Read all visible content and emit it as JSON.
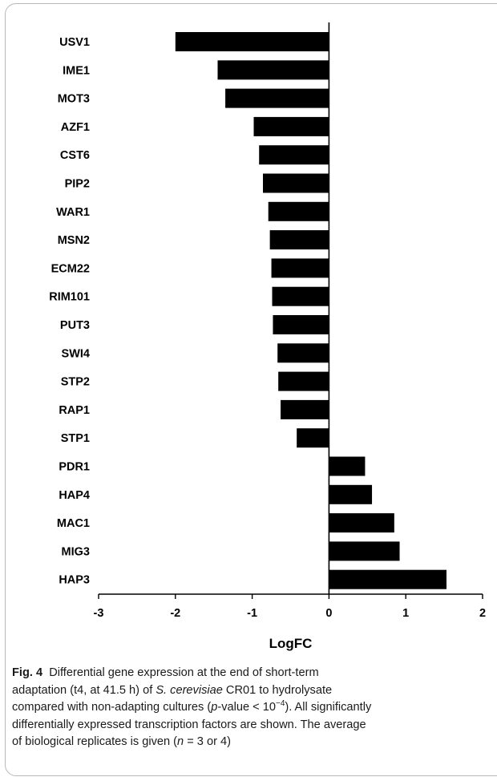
{
  "chart_data": {
    "type": "bar",
    "orientation": "horizontal",
    "categories": [
      "USV1",
      "IME1",
      "MOT3",
      "AZF1",
      "CST6",
      "PIP2",
      "WAR1",
      "MSN2",
      "ECM22",
      "RIM101",
      "PUT3",
      "SWI4",
      "STP2",
      "RAP1",
      "STP1",
      "PDR1",
      "HAP4",
      "MAC1",
      "MIG3",
      "HAP3"
    ],
    "values": [
      -2.0,
      -1.45,
      -1.35,
      -0.98,
      -0.91,
      -0.86,
      -0.79,
      -0.77,
      -0.75,
      -0.74,
      -0.73,
      -0.67,
      -0.66,
      -0.63,
      -0.42,
      0.47,
      0.56,
      0.85,
      0.92,
      1.53
    ],
    "xlabel": "LogFC",
    "ylabel": "",
    "xlim": [
      -3,
      2
    ],
    "xticks": [
      "-3",
      "-2",
      "-1",
      "0",
      "1",
      "2"
    ],
    "grid": false,
    "bar_color": "#000000"
  },
  "caption": {
    "fig_label": "Fig. 4",
    "line1": "Differential gene expression at the end of short-term",
    "line2_pre": "adaptation (t4, at 41.5 h) of ",
    "species": "S. cerevisiae",
    "line2_post": " CR01 to hydrolysate",
    "line3_pre": "compared with non-adapting cultures (",
    "p": "p",
    "line3_mid": "-value < 10",
    "exponent": "−4",
    "line3_post": "). All significantly",
    "line4": "differentially expressed transcription factors are shown. The average",
    "line5_pre": "of biological replicates is given (",
    "n": "n",
    "line5_post": " = 3 or 4)"
  }
}
